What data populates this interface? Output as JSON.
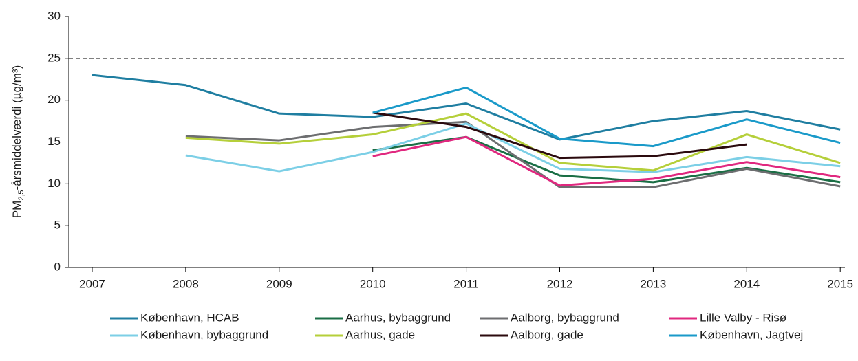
{
  "chart_data": {
    "type": "line",
    "ylabel": [
      "PM",
      "2,5",
      "-årsmiddelværdi (µg/m³)"
    ],
    "x": [
      2007,
      2008,
      2009,
      2010,
      2011,
      2012,
      2013,
      2014,
      2015
    ],
    "xlim": [
      2006.75,
      2015.05
    ],
    "xticks": [
      2007,
      2008,
      2009,
      2010,
      2011,
      2012,
      2013,
      2014,
      2015
    ],
    "ylim": [
      0,
      30
    ],
    "yticks": [
      0,
      5,
      10,
      15,
      20,
      25,
      30
    ],
    "hline": 25,
    "series": [
      {
        "name": "København, HCAB",
        "color": "#1f7ea1",
        "values": [
          23.0,
          21.8,
          18.4,
          18.0,
          19.6,
          15.3,
          17.5,
          18.7,
          16.5
        ]
      },
      {
        "name": "Aarhus, bybaggrund",
        "color": "#1a6e45",
        "values": [
          null,
          null,
          null,
          14.0,
          15.6,
          11.0,
          10.2,
          11.9,
          10.2
        ]
      },
      {
        "name": "Aalborg, bybaggrund",
        "color": "#6d6e70",
        "values": [
          null,
          15.7,
          15.2,
          16.8,
          17.4,
          9.6,
          9.6,
          11.8,
          9.7
        ]
      },
      {
        "name": "Lille Valby - Risø",
        "color": "#e0287f",
        "values": [
          null,
          null,
          null,
          13.3,
          15.6,
          9.8,
          10.6,
          12.6,
          10.8
        ]
      },
      {
        "name": "København, bybaggrund",
        "color": "#7ccfe6",
        "values": [
          null,
          13.4,
          11.5,
          13.8,
          17.2,
          11.8,
          11.4,
          13.2,
          12.1
        ]
      },
      {
        "name": "Aarhus, gade",
        "color": "#b5cf3a",
        "values": [
          null,
          15.5,
          14.8,
          15.9,
          18.4,
          12.5,
          11.6,
          15.9,
          12.5
        ]
      },
      {
        "name": "Aalborg, gade",
        "color": "#2b0a0e",
        "values": [
          null,
          null,
          null,
          18.5,
          16.8,
          13.1,
          13.3,
          14.7,
          null
        ]
      },
      {
        "name": "København, Jagtvej",
        "color": "#1a9ac9",
        "values": [
          null,
          null,
          null,
          18.5,
          21.5,
          15.4,
          14.5,
          17.7,
          14.9
        ]
      }
    ]
  }
}
